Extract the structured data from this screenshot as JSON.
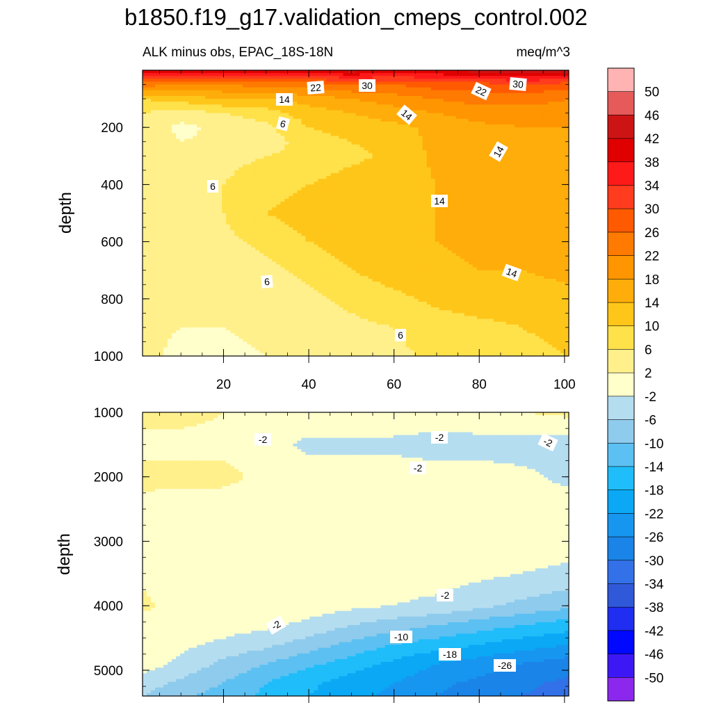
{
  "title": "b1850.f19_g17.validation_cmeps_control.002",
  "chart_data": [
    {
      "type": "contour",
      "panel": "upper",
      "subtitle_left": "ALK minus obs, EPAC_18S-18N",
      "subtitle_right": "meq/m^3",
      "ylabel": "depth",
      "xlim": [
        1,
        101
      ],
      "ylim": [
        1000,
        0
      ],
      "xticks": [
        20,
        40,
        60,
        80,
        100
      ],
      "yticks": [
        200,
        400,
        600,
        800,
        1000
      ],
      "x": [
        1,
        10,
        20,
        30,
        40,
        50,
        60,
        70,
        80,
        90,
        101
      ],
      "y": [
        0,
        50,
        100,
        150,
        200,
        250,
        300,
        400,
        500,
        600,
        700,
        800,
        900,
        1000
      ],
      "z": [
        [
          42,
          44,
          40,
          44,
          40,
          44,
          40,
          42,
          44,
          46,
          44
        ],
        [
          24,
          22,
          22,
          24,
          24,
          26,
          26,
          28,
          28,
          30,
          28
        ],
        [
          10,
          12,
          14,
          14,
          16,
          18,
          20,
          22,
          24,
          24,
          22
        ],
        [
          6,
          4,
          6,
          8,
          12,
          14,
          16,
          18,
          20,
          20,
          20
        ],
        [
          5,
          1,
          3,
          5,
          10,
          12,
          13,
          15,
          17,
          18,
          18
        ],
        [
          4,
          2,
          3,
          4,
          8,
          10,
          12,
          15,
          16,
          17,
          17
        ],
        [
          4,
          4,
          5,
          6,
          7,
          9,
          11,
          15,
          16,
          17,
          17
        ],
        [
          4,
          5,
          6,
          8,
          10,
          12,
          12,
          14,
          15,
          16,
          16
        ],
        [
          4,
          5,
          6,
          10,
          12,
          12,
          13,
          14,
          15,
          16,
          16
        ],
        [
          4,
          4,
          5,
          7,
          10,
          12,
          13,
          14,
          15,
          15,
          16
        ],
        [
          4,
          4,
          4,
          5,
          7,
          10,
          12,
          13,
          14,
          14,
          15
        ],
        [
          4,
          3,
          4,
          4,
          5,
          7,
          9,
          11,
          12,
          12,
          13
        ],
        [
          3,
          2,
          2,
          3,
          4,
          5,
          6,
          8,
          9,
          10,
          11
        ],
        [
          3,
          1,
          1,
          2,
          3,
          4,
          5,
          7,
          8,
          9,
          10
        ]
      ],
      "contour_labels": [
        "22",
        "30",
        "22",
        "30",
        "14",
        "14",
        "6",
        "14",
        "6",
        "14",
        "14",
        "6",
        "6"
      ]
    },
    {
      "type": "contour",
      "panel": "lower",
      "ylabel": "depth",
      "xlim": [
        1,
        101
      ],
      "ylim": [
        5400,
        1000
      ],
      "yticks": [
        1000,
        2000,
        3000,
        4000,
        5000
      ],
      "x": [
        1,
        10,
        20,
        30,
        40,
        50,
        60,
        70,
        80,
        90,
        101
      ],
      "y": [
        1000,
        1500,
        2000,
        2500,
        3000,
        3500,
        4000,
        4300,
        4600,
        4900,
        5200,
        5400
      ],
      "z": [
        [
          3,
          3,
          2,
          1,
          1,
          1,
          1,
          1,
          2,
          2,
          3
        ],
        [
          1,
          1,
          1,
          0,
          -3,
          -3,
          -3,
          -4,
          -4,
          -4,
          -4
        ],
        [
          3,
          3,
          3,
          1,
          0,
          0,
          0,
          0,
          0,
          -1,
          -3
        ],
        [
          1,
          0,
          0,
          0,
          0,
          0,
          0,
          0,
          0,
          0,
          0
        ],
        [
          1,
          0,
          0,
          0,
          0,
          0,
          0,
          0,
          0,
          0,
          0
        ],
        [
          1,
          0,
          0,
          0,
          0,
          0,
          0,
          0,
          -1,
          -2,
          -3
        ],
        [
          3,
          0,
          0,
          0,
          0,
          -1,
          -2,
          -3,
          -5,
          -7,
          -9
        ],
        [
          0,
          0,
          0,
          -1,
          -3,
          -6,
          -8,
          -10,
          -12,
          -14,
          -16
        ],
        [
          0,
          -1,
          -3,
          -5,
          -8,
          -11,
          -14,
          -16,
          -18,
          -20,
          -22
        ],
        [
          0,
          -3,
          -7,
          -10,
          -13,
          -16,
          -19,
          -22,
          -24,
          -26,
          -28
        ],
        [
          -4,
          -7,
          -10,
          -14,
          -17,
          -20,
          -22,
          -25,
          -27,
          -29,
          -31
        ],
        [
          -6,
          -9,
          -12,
          -15,
          -18,
          -21,
          -23,
          -26,
          -28,
          -30,
          -32
        ]
      ],
      "contour_labels": [
        "-2",
        "-2",
        "-2",
        "-2",
        "-2",
        "-2",
        "-10",
        "-18",
        "-26"
      ]
    }
  ],
  "colorbar": {
    "labels": [
      "50",
      "46",
      "42",
      "38",
      "34",
      "30",
      "26",
      "22",
      "18",
      "14",
      "10",
      "6",
      "2",
      "-2",
      "-6",
      "-10",
      "-14",
      "-18",
      "-22",
      "-26",
      "-30",
      "-34",
      "-38",
      "-42",
      "-46",
      "-50"
    ],
    "levels": [
      50,
      46,
      42,
      38,
      34,
      30,
      26,
      22,
      18,
      14,
      10,
      6,
      2,
      -2,
      -6,
      -10,
      -14,
      -18,
      -22,
      -26,
      -30,
      -34,
      -38,
      -42,
      -46,
      -50
    ],
    "colors": [
      "#ffb3b3",
      "#e65a5a",
      "#cc1414",
      "#e00000",
      "#ff1a1a",
      "#ff3c1e",
      "#ff5a00",
      "#ff7a00",
      "#ff9500",
      "#ffad0a",
      "#ffc61a",
      "#ffe14a",
      "#fff08c",
      "#ffffcc",
      "#b5ddf0",
      "#8fcbec",
      "#5cc0f2",
      "#1fbdfa",
      "#0aa8f5",
      "#1796f0",
      "#1a84e8",
      "#3371e8",
      "#3059d9",
      "#1f2ef0",
      "#0008ff",
      "#3d18f5",
      "#8c28ed"
    ]
  }
}
